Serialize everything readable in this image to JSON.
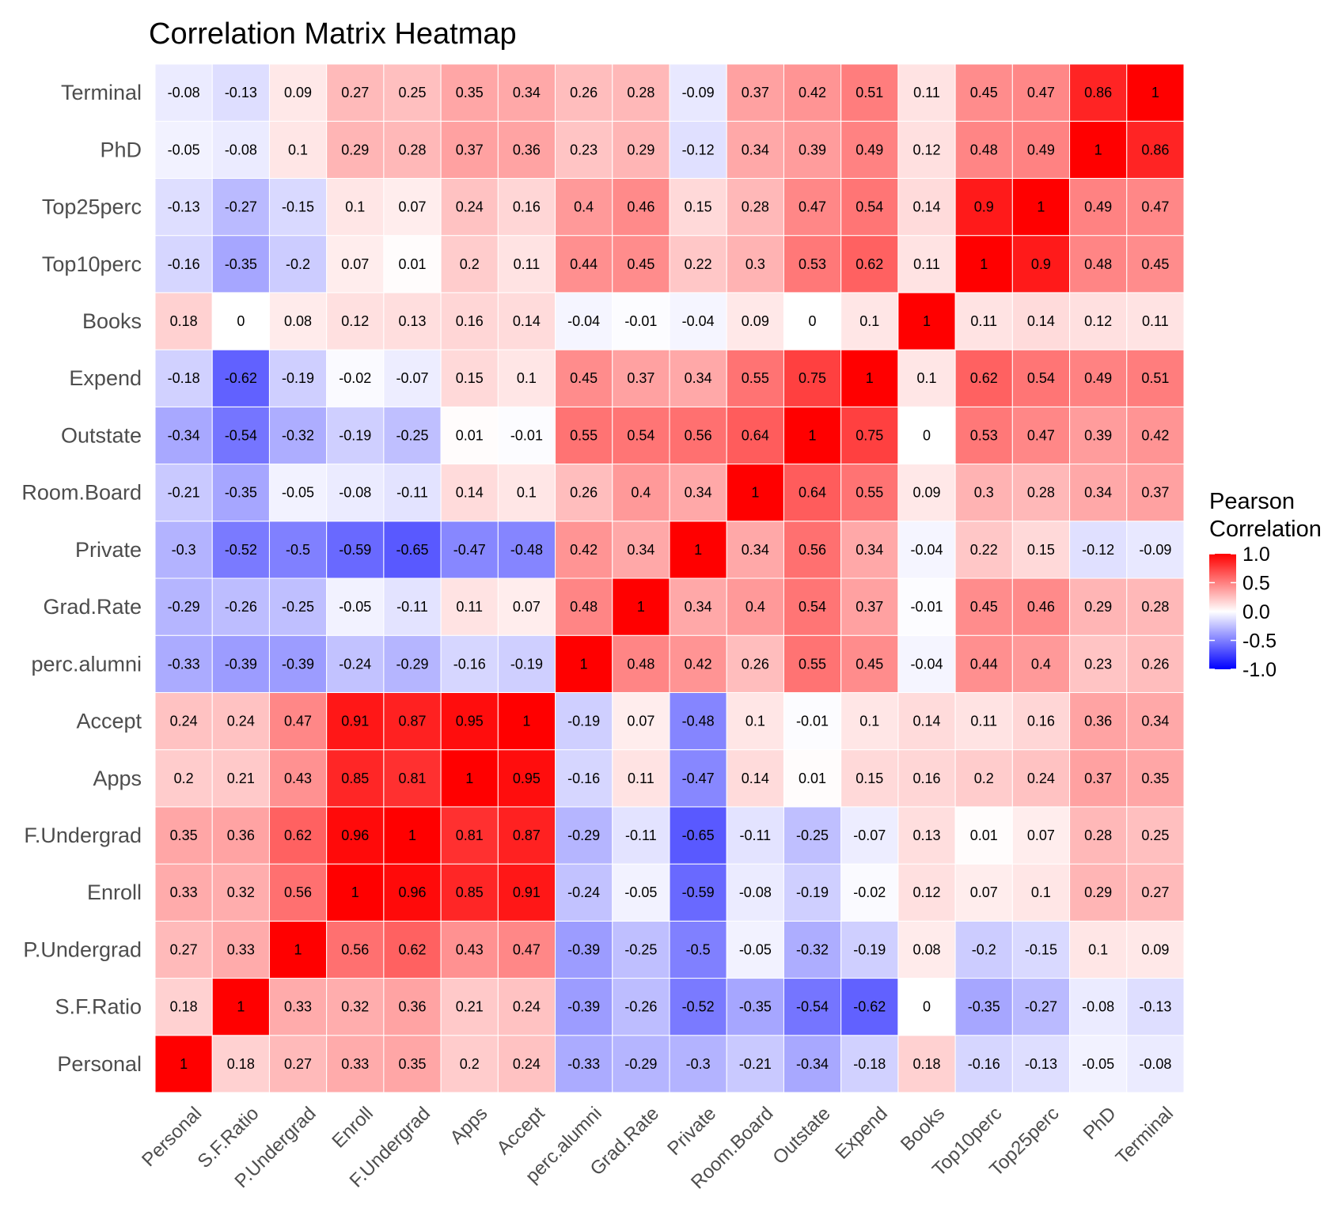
{
  "chart_data": {
    "type": "heatmap",
    "title": "Correlation Matrix Heatmap",
    "xlabel": "",
    "ylabel": "",
    "x_categories": [
      "Personal",
      "S.F.Ratio",
      "P.Undergrad",
      "Enroll",
      "F.Undergrad",
      "Apps",
      "Accept",
      "perc.alumni",
      "Grad.Rate",
      "Private",
      "Room.Board",
      "Outstate",
      "Expend",
      "Books",
      "Top10perc",
      "Top25perc",
      "PhD",
      "Terminal"
    ],
    "y_categories_bottom_to_top": [
      "Personal",
      "S.F.Ratio",
      "P.Undergrad",
      "Enroll",
      "F.Undergrad",
      "Apps",
      "Accept",
      "perc.alumni",
      "Grad.Rate",
      "Private",
      "Room.Board",
      "Outstate",
      "Expend",
      "Books",
      "Top10perc",
      "Top25perc",
      "PhD",
      "Terminal"
    ],
    "values_rows_bottom_to_top": [
      [
        1,
        0.18,
        0.27,
        0.33,
        0.35,
        0.2,
        0.24,
        -0.33,
        -0.29,
        -0.3,
        -0.21,
        -0.34,
        -0.18,
        0.18,
        -0.16,
        -0.13,
        -0.05,
        -0.08
      ],
      [
        0.18,
        1,
        0.33,
        0.32,
        0.36,
        0.21,
        0.24,
        -0.39,
        -0.26,
        -0.52,
        -0.35,
        -0.54,
        -0.62,
        0,
        -0.35,
        -0.27,
        -0.08,
        -0.13
      ],
      [
        0.27,
        0.33,
        1,
        0.56,
        0.62,
        0.43,
        0.47,
        -0.39,
        -0.25,
        -0.5,
        -0.05,
        -0.32,
        -0.19,
        0.08,
        -0.2,
        -0.15,
        0.1,
        0.09
      ],
      [
        0.33,
        0.32,
        0.56,
        1,
        0.96,
        0.85,
        0.91,
        -0.24,
        -0.05,
        -0.59,
        -0.08,
        -0.19,
        -0.02,
        0.12,
        0.07,
        0.1,
        0.29,
        0.27
      ],
      [
        0.35,
        0.36,
        0.62,
        0.96,
        1,
        0.81,
        0.87,
        -0.29,
        -0.11,
        -0.65,
        -0.11,
        -0.25,
        -0.07,
        0.13,
        0.01,
        0.07,
        0.28,
        0.25
      ],
      [
        0.2,
        0.21,
        0.43,
        0.85,
        0.81,
        1,
        0.95,
        -0.16,
        0.11,
        -0.47,
        0.14,
        0.01,
        0.15,
        0.16,
        0.2,
        0.24,
        0.37,
        0.35
      ],
      [
        0.24,
        0.24,
        0.47,
        0.91,
        0.87,
        0.95,
        1,
        -0.19,
        0.07,
        -0.48,
        0.1,
        -0.01,
        0.1,
        0.14,
        0.11,
        0.16,
        0.36,
        0.34
      ],
      [
        -0.33,
        -0.39,
        -0.39,
        -0.24,
        -0.29,
        -0.16,
        -0.19,
        1,
        0.48,
        0.42,
        0.26,
        0.55,
        0.45,
        -0.04,
        0.44,
        0.4,
        0.23,
        0.26
      ],
      [
        -0.29,
        -0.26,
        -0.25,
        -0.05,
        -0.11,
        0.11,
        0.07,
        0.48,
        1,
        0.34,
        0.4,
        0.54,
        0.37,
        -0.01,
        0.45,
        0.46,
        0.29,
        0.28
      ],
      [
        -0.3,
        -0.52,
        -0.5,
        -0.59,
        -0.65,
        -0.47,
        -0.48,
        0.42,
        0.34,
        1,
        0.34,
        0.56,
        0.34,
        -0.04,
        0.22,
        0.15,
        -0.12,
        -0.09
      ],
      [
        -0.21,
        -0.35,
        -0.05,
        -0.08,
        -0.11,
        0.14,
        0.1,
        0.26,
        0.4,
        0.34,
        1,
        0.64,
        0.55,
        0.09,
        0.3,
        0.28,
        0.34,
        0.37
      ],
      [
        -0.34,
        -0.54,
        -0.32,
        -0.19,
        -0.25,
        0.01,
        -0.01,
        0.55,
        0.54,
        0.56,
        0.64,
        1,
        0.75,
        0,
        0.53,
        0.47,
        0.39,
        0.42
      ],
      [
        -0.18,
        -0.62,
        -0.19,
        -0.02,
        -0.07,
        0.15,
        0.1,
        0.45,
        0.37,
        0.34,
        0.55,
        0.75,
        1,
        0.1,
        0.62,
        0.54,
        0.49,
        0.51
      ],
      [
        0.18,
        0,
        0.08,
        0.12,
        0.13,
        0.16,
        0.14,
        -0.04,
        -0.01,
        -0.04,
        0.09,
        0,
        0.1,
        1,
        0.11,
        0.14,
        0.12,
        0.11
      ],
      [
        -0.16,
        -0.35,
        -0.2,
        0.07,
        0.01,
        0.2,
        0.11,
        0.44,
        0.45,
        0.22,
        0.3,
        0.53,
        0.62,
        0.11,
        1,
        0.9,
        0.48,
        0.45
      ],
      [
        -0.13,
        -0.27,
        -0.15,
        0.1,
        0.07,
        0.24,
        0.16,
        0.4,
        0.46,
        0.15,
        0.28,
        0.47,
        0.54,
        0.14,
        0.9,
        1,
        0.49,
        0.47
      ],
      [
        -0.05,
        -0.08,
        0.1,
        0.29,
        0.28,
        0.37,
        0.36,
        0.23,
        0.29,
        -0.12,
        0.34,
        0.39,
        0.49,
        0.12,
        0.48,
        0.49,
        1,
        0.86
      ],
      [
        -0.08,
        -0.13,
        0.09,
        0.27,
        0.25,
        0.35,
        0.34,
        0.26,
        0.28,
        -0.09,
        0.37,
        0.42,
        0.51,
        0.11,
        0.45,
        0.47,
        0.86,
        1
      ]
    ],
    "value_range": [
      -1,
      1
    ],
    "legend": {
      "title_lines": [
        "Pearson",
        "Correlation"
      ],
      "ticks": [
        1.0,
        0.5,
        0.0,
        -0.5,
        -1.0
      ],
      "tick_labels": [
        "1.0",
        "0.5",
        "0.0",
        "-0.5",
        "-1.0"
      ],
      "placement": "right"
    },
    "colors": {
      "low": "#0000ff",
      "mid": "#ffffff",
      "high": "#ff0000"
    }
  }
}
